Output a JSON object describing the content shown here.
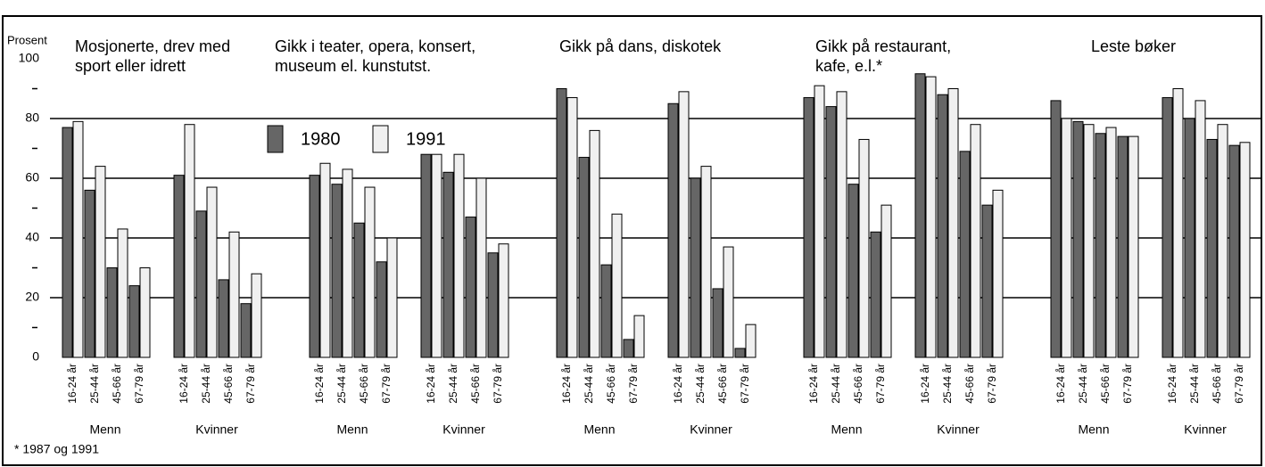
{
  "chart_data": {
    "type": "bar",
    "ylabel": "Prosent",
    "ylim": [
      0,
      100
    ],
    "yticks": [
      0,
      20,
      40,
      60,
      80,
      100
    ],
    "yminor": [
      10,
      30,
      50,
      70,
      90
    ],
    "grid": true,
    "categories": [
      "16-24 år",
      "25-44 år",
      "45-66 år",
      "67-79 år"
    ],
    "groups": [
      "Menn",
      "Kvinner"
    ],
    "series": [
      {
        "name": "1980",
        "color": "#666666"
      },
      {
        "name": "1991",
        "color": "#f0f0f0"
      }
    ],
    "panels": [
      {
        "title": [
          "Mosjonerte, drev med",
          "sport eller idrett"
        ],
        "values": [
          [
            77,
            56,
            30,
            24,
            61,
            49,
            26,
            18
          ],
          [
            79,
            64,
            43,
            30,
            78,
            57,
            42,
            28
          ]
        ]
      },
      {
        "title": [
          "Gikk i teater, opera, konsert,",
          "museum el. kunstutst."
        ],
        "values": [
          [
            61,
            58,
            45,
            32,
            68,
            62,
            47,
            35
          ],
          [
            65,
            63,
            57,
            40,
            68,
            68,
            60,
            38
          ]
        ]
      },
      {
        "title": [
          "Gikk på dans, diskotek"
        ],
        "values": [
          [
            90,
            67,
            31,
            6,
            85,
            60,
            23,
            3
          ],
          [
            87,
            76,
            48,
            14,
            89,
            64,
            37,
            11
          ]
        ]
      },
      {
        "title": [
          "Gikk på restaurant,",
          "kafe, e.l.*"
        ],
        "values": [
          [
            87,
            84,
            58,
            42,
            95,
            88,
            69,
            51
          ],
          [
            91,
            89,
            73,
            51,
            94,
            90,
            78,
            56
          ]
        ]
      },
      {
        "title": [
          "Leste bøker"
        ],
        "values": [
          [
            86,
            79,
            75,
            74,
            87,
            80,
            73,
            71
          ],
          [
            80,
            78,
            77,
            74,
            90,
            86,
            78,
            72
          ]
        ]
      }
    ],
    "footnote": "* 1987 og 1991"
  }
}
